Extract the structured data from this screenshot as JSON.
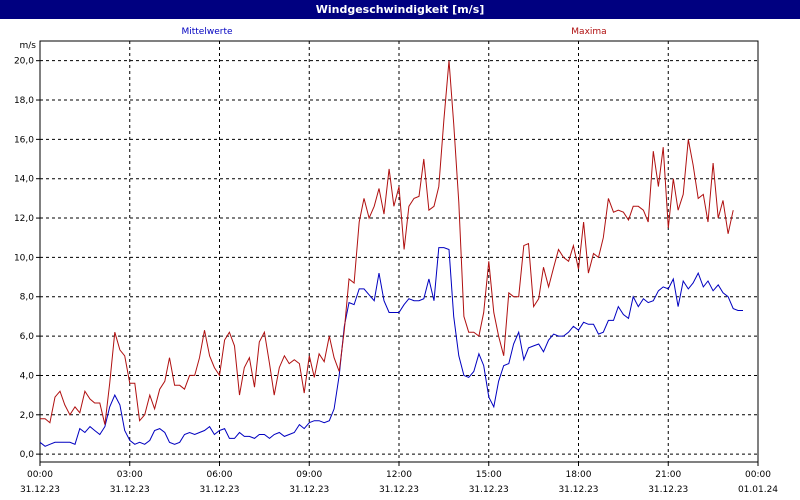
{
  "title": "Windgeschwindigkeit [m/s]",
  "colors": {
    "title_bar": "#000080",
    "mean": "#0000c0",
    "max": "#b01010",
    "grid": "#000000"
  },
  "chart_data": {
    "type": "line",
    "title": "Windgeschwindigkeit [m/s]",
    "ylabel": "m/s",
    "ylim": [
      -0.4,
      21.0
    ],
    "grid": true,
    "legend_position": "top",
    "xlim": [
      "2023-12-31 00:00",
      "2024-01-01 00:00"
    ],
    "x_ticks": [
      {
        "time": "00:00",
        "date": "31.12.23"
      },
      {
        "time": "03:00",
        "date": "31.12.23"
      },
      {
        "time": "06:00",
        "date": "31.12.23"
      },
      {
        "time": "09:00",
        "date": "31.12.23"
      },
      {
        "time": "12:00",
        "date": "31.12.23"
      },
      {
        "time": "15:00",
        "date": "31.12.23"
      },
      {
        "time": "18:00",
        "date": "31.12.23"
      },
      {
        "time": "21:00",
        "date": "31.12.23"
      },
      {
        "time": "00:00",
        "date": "01.01.24"
      }
    ],
    "y_ticks": [
      "0,0",
      "2,0",
      "4,0",
      "6,0",
      "8,0",
      "10,0",
      "12,0",
      "14,0",
      "16,0",
      "18,0",
      "20,0"
    ],
    "y_tick_values": [
      0,
      2,
      4,
      6,
      8,
      10,
      12,
      14,
      16,
      18,
      20
    ],
    "x_hours": [
      0,
      0.17,
      0.33,
      0.5,
      0.67,
      0.83,
      1,
      1.17,
      1.33,
      1.5,
      1.67,
      1.83,
      2,
      2.17,
      2.33,
      2.5,
      2.67,
      2.83,
      3,
      3.17,
      3.33,
      3.5,
      3.67,
      3.83,
      4,
      4.17,
      4.33,
      4.5,
      4.67,
      4.83,
      5,
      5.17,
      5.33,
      5.5,
      5.67,
      5.83,
      6,
      6.17,
      6.33,
      6.5,
      6.67,
      6.83,
      7,
      7.17,
      7.33,
      7.5,
      7.67,
      7.83,
      8,
      8.17,
      8.33,
      8.5,
      8.67,
      8.83,
      9,
      9.17,
      9.33,
      9.5,
      9.67,
      9.83,
      10,
      10.17,
      10.33,
      10.5,
      10.67,
      10.83,
      11,
      11.17,
      11.33,
      11.5,
      11.67,
      11.83,
      12,
      12.17,
      12.33,
      12.5,
      12.67,
      12.83,
      13,
      13.17,
      13.33,
      13.5,
      13.67,
      13.83,
      14,
      14.17,
      14.33,
      14.5,
      14.67,
      14.83,
      15,
      15.17,
      15.33,
      15.5,
      15.67,
      15.83,
      16,
      16.17,
      16.33,
      16.5,
      16.67,
      16.83,
      17,
      17.17,
      17.33,
      17.5,
      17.67,
      17.83,
      18,
      18.17,
      18.33,
      18.5,
      18.67,
      18.83,
      19,
      19.17,
      19.33,
      19.5,
      19.67,
      19.83,
      20,
      20.17,
      20.33,
      20.5,
      20.67,
      20.83,
      21,
      21.17,
      21.33,
      21.5,
      21.67,
      21.83,
      22,
      22.17,
      22.33,
      22.5,
      22.67,
      22.83,
      23,
      23.17,
      23.33,
      23.5,
      23.67,
      23.83
    ],
    "series": [
      {
        "name": "Mittelwerte",
        "color": "#0000c0",
        "values": [
          0.6,
          0.4,
          0.5,
          0.6,
          0.6,
          0.6,
          0.6,
          0.5,
          1.3,
          1.1,
          1.4,
          1.2,
          1.0,
          1.4,
          2.4,
          3.0,
          2.5,
          1.2,
          0.7,
          0.5,
          0.6,
          0.5,
          0.7,
          1.2,
          1.3,
          1.1,
          0.6,
          0.5,
          0.6,
          1.0,
          1.1,
          1.0,
          1.1,
          1.2,
          1.4,
          1.0,
          1.2,
          1.3,
          0.8,
          0.8,
          1.1,
          0.9,
          0.9,
          0.8,
          1.0,
          1.0,
          0.8,
          1.0,
          1.1,
          0.9,
          1.0,
          1.1,
          1.5,
          1.3,
          1.6,
          1.7,
          1.7,
          1.6,
          1.7,
          2.3,
          4.0,
          6.5,
          7.7,
          7.6,
          8.4,
          8.4,
          8.1,
          7.8,
          9.2,
          7.8,
          7.2,
          7.2,
          7.2,
          7.6,
          7.9,
          7.8,
          7.8,
          7.9,
          8.9,
          7.8,
          10.5,
          10.5,
          10.4,
          7.0,
          5.0,
          4.0,
          3.9,
          4.2,
          5.1,
          4.5,
          2.9,
          2.4,
          3.7,
          4.5,
          4.6,
          5.6,
          6.2,
          4.8,
          5.4,
          5.5,
          5.6,
          5.2,
          5.8,
          6.1,
          6.0,
          6.0,
          6.2,
          6.5,
          6.3,
          6.7,
          6.6,
          6.6,
          6.1,
          6.2,
          6.8,
          6.8,
          7.5,
          7.1,
          6.9,
          8.0,
          7.5,
          7.9,
          7.7,
          7.8,
          8.3,
          8.5,
          8.4,
          8.9,
          7.5,
          8.8,
          8.4,
          8.7,
          9.2,
          8.5,
          8.8,
          8.3,
          8.6,
          8.2,
          8.0,
          7.4,
          7.3,
          7.3
        ]
      },
      {
        "name": "Maxima",
        "color": "#b01010",
        "values": [
          1.8,
          1.8,
          1.6,
          2.9,
          3.2,
          2.5,
          2.0,
          2.4,
          2.1,
          3.2,
          2.8,
          2.6,
          2.6,
          1.5,
          3.6,
          6.2,
          5.3,
          5.0,
          3.6,
          3.6,
          1.7,
          2.0,
          3.0,
          2.3,
          3.3,
          3.7,
          4.9,
          3.5,
          3.5,
          3.3,
          4.0,
          4.0,
          4.9,
          6.3,
          5.0,
          4.4,
          4.0,
          5.8,
          6.2,
          5.5,
          3.0,
          4.4,
          4.9,
          3.4,
          5.7,
          6.2,
          4.6,
          3.0,
          4.4,
          5.0,
          4.6,
          4.8,
          4.6,
          3.1,
          5.0,
          3.9,
          5.1,
          4.7,
          6.0,
          4.9,
          4.2,
          6.3,
          8.9,
          8.7,
          11.8,
          13.0,
          12.0,
          12.6,
          13.5,
          12.2,
          14.5,
          12.6,
          13.6,
          10.4,
          12.6,
          13.0,
          13.1,
          15.0,
          12.4,
          12.6,
          13.6,
          17.0,
          20.0,
          16.8,
          12.8,
          7.0,
          6.2,
          6.2,
          6.0,
          7.2,
          9.8,
          7.2,
          6.0,
          5.0,
          8.2,
          8.0,
          8.0,
          10.6,
          10.7,
          7.5,
          7.9,
          9.5,
          8.5,
          9.5,
          10.4,
          10.0,
          9.8,
          10.6,
          9.4,
          11.8,
          9.2,
          10.2,
          10.0,
          11.0,
          13.0,
          12.3,
          12.4,
          12.3,
          11.9,
          12.6,
          12.6,
          12.4,
          11.8,
          15.4,
          13.6,
          15.6,
          11.5,
          14.0,
          12.4,
          13.2,
          16.0,
          14.7,
          13.0,
          13.2,
          11.8,
          14.8,
          12.0,
          12.9,
          11.2,
          12.4
        ]
      }
    ]
  }
}
